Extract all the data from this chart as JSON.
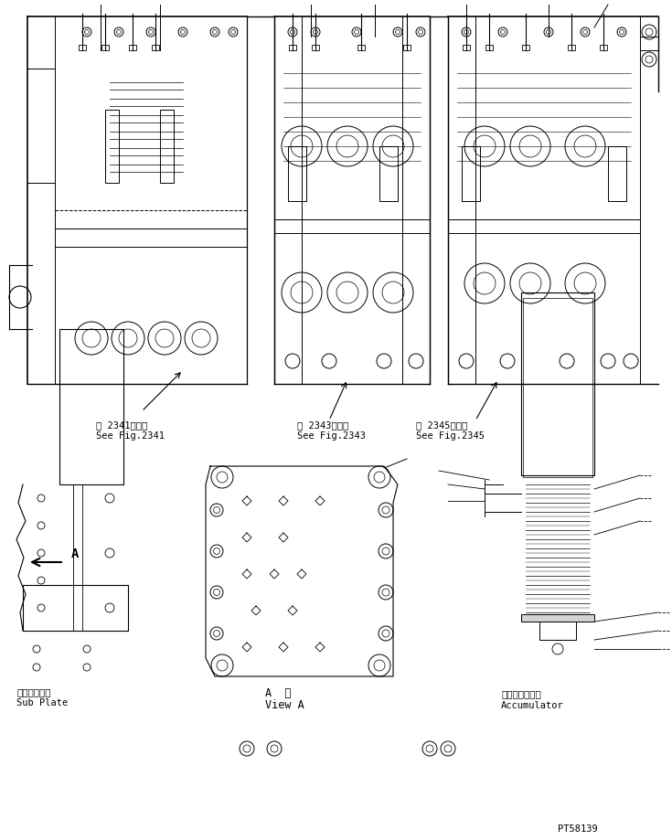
{
  "bg_color": "#ffffff",
  "line_color": "#000000",
  "fig_width": 7.35,
  "fig_height": 9.19,
  "dpi": 100,
  "labels": {
    "fig2341_jp": "第 2341図参照",
    "fig2341_en": "See Fig.2341",
    "fig2343_jp": "第 2343図参照",
    "fig2343_en": "See Fig.2343",
    "fig2345_jp": "第 2345図参照",
    "fig2345_en": "See Fig.2345",
    "subplate_jp": "サブプレート",
    "subplate_en": "Sub Plate",
    "viewa_jp": "A  視",
    "viewa_en": "View A",
    "accum_jp": "アキュムレータ",
    "accum_en": "Accumulator",
    "pt": "PT58139",
    "arrow_a": "A"
  },
  "font_sizes": {
    "label": 7.5,
    "pt": 7.5
  }
}
